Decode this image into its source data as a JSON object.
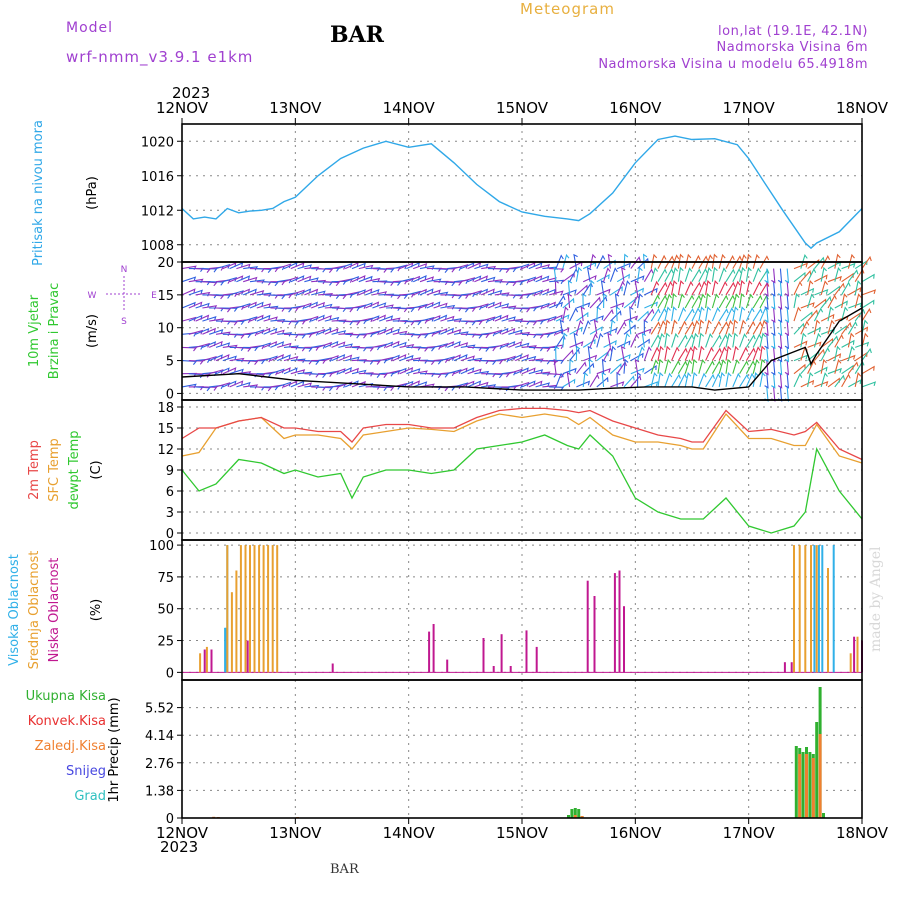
{
  "header": {
    "model_label": "Model",
    "model_name": "wrf-nmm_v3.9.1  e1km",
    "station": "BAR",
    "title": "Meteogram",
    "lonlat": "lon,lat (19.1E, 42.1N)",
    "altitude": "Nadmorska Visina 6m",
    "model_altitude": "Nadmorska Visina u modelu 65.4918m"
  },
  "footer": {
    "station": "BAR",
    "credit": "made by Angel"
  },
  "colors": {
    "pressure": "#30a8e8",
    "t2m": "#e84848",
    "sfc": "#e8a030",
    "dewpt": "#30c830",
    "cloud_high": "#30b0e8",
    "cloud_mid": "#e8a030",
    "cloud_low": "#c01890",
    "precip_total": "#30b030",
    "precip_conv": "#e83030",
    "precip_frozen": "#f08030",
    "snow": "#4848e0",
    "graupel": "#30c0c0",
    "purple": "#a040d0",
    "grid": "#888888"
  },
  "chart_data": [
    {
      "type": "line",
      "panel": "pressure",
      "year": "2023",
      "x_tick_labels": [
        "12NOV",
        "13NOV",
        "14NOV",
        "15NOV",
        "16NOV",
        "17NOV",
        "18NOV"
      ],
      "ylabel_lines": [
        "Pritisak na nivou mora"
      ],
      "unit": "(hPa)",
      "ylim": [
        1006,
        1022
      ],
      "y_ticks": [
        "1008",
        "1012",
        "1016",
        "1020"
      ],
      "grid": true,
      "x": [
        0,
        0.1,
        0.2,
        0.3,
        0.4,
        0.5,
        0.6,
        0.7,
        0.8,
        0.9,
        1.0,
        1.2,
        1.4,
        1.6,
        1.8,
        2.0,
        2.2,
        2.4,
        2.6,
        2.8,
        3.0,
        3.2,
        3.4,
        3.5,
        3.6,
        3.8,
        4.0,
        4.2,
        4.35,
        4.5,
        4.7,
        4.9,
        5.0,
        5.1,
        5.3,
        5.5,
        5.55,
        5.6,
        5.8,
        6.0
      ],
      "series": [
        {
          "values": [
            1012.2,
            1011,
            1011.2,
            1011,
            1012.2,
            1011.7,
            1011.9,
            1012,
            1012.2,
            1013,
            1013.5,
            1016,
            1018,
            1019.2,
            1020,
            1019.3,
            1019.7,
            1017.5,
            1015,
            1013,
            1011.8,
            1011.3,
            1011,
            1010.8,
            1011.6,
            1014,
            1017.5,
            1020.2,
            1020.6,
            1020.2,
            1020.3,
            1019.6,
            1018,
            1016,
            1012,
            1008.2,
            1007.6,
            1008.2,
            1009.5,
            1012.2
          ]
        }
      ]
    },
    {
      "type": "line",
      "panel": "wind",
      "ylabel_lines": [
        "10m Vjetar",
        "Brzina i Pravac"
      ],
      "unit": "(m/s)",
      "compass": {
        "n": "N",
        "w": "W",
        "e": "E",
        "s": "S"
      },
      "ylim": [
        -1,
        20
      ],
      "y_ticks": [
        "0",
        "5",
        "10",
        "15",
        "20"
      ],
      "grid": true,
      "x": [
        0,
        0.5,
        1.0,
        1.5,
        2.0,
        2.5,
        3.0,
        3.5,
        3.8,
        4.1,
        4.5,
        4.7,
        5.0,
        5.2,
        5.5,
        5.55,
        5.6,
        5.8,
        6.0
      ],
      "series": [
        {
          "values": [
            2.5,
            3,
            2,
            1.5,
            1,
            1,
            0.5,
            0.5,
            0.8,
            1,
            1,
            0.5,
            1,
            5,
            7,
            4.5,
            6,
            11,
            13
          ]
        }
      ],
      "barb_rows": [
        1,
        3,
        5,
        7,
        9,
        11,
        13,
        15,
        17,
        19
      ],
      "barb_time_step": 0.06,
      "barb_colors": [
        "#9030c0",
        "#3060e0",
        "#30b0e8",
        "#30c0a0",
        "#40c040",
        "#e06030",
        "#e03050"
      ]
    },
    {
      "type": "line",
      "panel": "temperature",
      "ylabel_lines": [
        "2m Temp",
        "SFC Temp",
        "dewpt Temp"
      ],
      "unit": "(C)",
      "ylim": [
        -1,
        19
      ],
      "y_ticks": [
        "0",
        "3",
        "6",
        "9",
        "12",
        "15",
        "18"
      ],
      "grid": true,
      "x": [
        0,
        0.15,
        0.3,
        0.5,
        0.7,
        0.9,
        1.0,
        1.2,
        1.4,
        1.5,
        1.6,
        1.8,
        2.0,
        2.2,
        2.4,
        2.6,
        2.8,
        3.0,
        3.2,
        3.4,
        3.5,
        3.6,
        3.8,
        4.0,
        4.2,
        4.4,
        4.5,
        4.6,
        4.8,
        5.0,
        5.2,
        5.4,
        5.5,
        5.6,
        5.8,
        6.0
      ],
      "series": [
        {
          "name": "2m Temp",
          "values": [
            13.5,
            15,
            15,
            16,
            16.5,
            15,
            15,
            14.5,
            14.5,
            13,
            15,
            15.5,
            15.5,
            15,
            15,
            16.5,
            17.5,
            17.8,
            17.8,
            17.5,
            17.2,
            17.5,
            16,
            15,
            14,
            13.5,
            13,
            13,
            17.5,
            14.5,
            14.8,
            14,
            14.5,
            15.8,
            12,
            10.5
          ]
        },
        {
          "name": "SFC Temp",
          "values": [
            11,
            11.5,
            15,
            16,
            16.5,
            13.5,
            14,
            14,
            13.5,
            12,
            14,
            14.5,
            15,
            14.8,
            14.5,
            16,
            17,
            16.5,
            17,
            16.5,
            15.5,
            16.5,
            14,
            13,
            13,
            12.5,
            12,
            12,
            17,
            13.5,
            13.5,
            12.5,
            12.5,
            15.5,
            11,
            10
          ]
        },
        {
          "name": "dewpt Temp",
          "values": [
            9,
            6,
            7,
            10.5,
            10,
            8.5,
            9,
            8,
            8.5,
            5,
            8,
            9,
            9,
            8.5,
            9,
            12,
            12.5,
            13,
            14,
            12.5,
            12,
            14,
            11,
            5,
            3,
            2,
            2,
            2,
            5,
            1,
            0,
            1,
            3,
            12,
            6,
            2
          ]
        }
      ]
    },
    {
      "type": "bar",
      "panel": "cloud",
      "ylabel_lines": [
        "Visoka Oblacnost",
        "Srednja Oblacnost",
        "Niska Oblacnost"
      ],
      "unit": "(%)",
      "ylim": [
        -6,
        104
      ],
      "y_ticks": [
        "0",
        "25",
        "50",
        "75",
        "100"
      ],
      "grid": true,
      "series": [
        {
          "name": "Visoka Oblacnost",
          "x": [
            0.38,
            0.39,
            0.4,
            5.58,
            5.62,
            5.65,
            5.75
          ],
          "values": [
            35,
            35,
            100,
            100,
            100,
            100,
            100
          ]
        },
        {
          "name": "Srednja Oblacnost",
          "x": [
            0.16,
            0.22,
            0.4,
            0.44,
            0.48,
            0.52,
            0.56,
            0.6,
            0.64,
            0.68,
            0.72,
            0.76,
            0.8,
            0.84,
            5.4,
            5.45,
            5.5,
            5.55,
            5.6,
            5.7,
            5.9,
            5.96
          ],
          "values": [
            15,
            20,
            100,
            63,
            80,
            100,
            100,
            100,
            100,
            100,
            100,
            100,
            100,
            100,
            100,
            100,
            100,
            100,
            100,
            82,
            15,
            28
          ]
        },
        {
          "name": "Niska Oblacnost",
          "x": [
            0.2,
            0.26,
            0.58,
            1.33,
            2.18,
            2.22,
            2.34,
            2.66,
            2.75,
            2.82,
            2.9,
            3.04,
            3.13,
            3.58,
            3.64,
            3.82,
            3.86,
            3.9,
            5.32,
            5.38,
            5.93,
            6.0
          ],
          "values": [
            18,
            18,
            25,
            7,
            32,
            38,
            10,
            27,
            5,
            30,
            5,
            33,
            20,
            72,
            60,
            78,
            80,
            52,
            8,
            8,
            28,
            25
          ]
        }
      ]
    },
    {
      "type": "bar",
      "panel": "precip",
      "ylabel_lines": [
        "1hr Precip (mm)"
      ],
      "legend": [
        "Ukupna Kisa",
        "Konvek.Kisa",
        "Zaledj.Kisa",
        "Snijeg",
        "Grad"
      ],
      "ylim": [
        0,
        6.9
      ],
      "y_ticks": [
        "0",
        "1.38",
        "2.76",
        "4.14",
        "5.52"
      ],
      "grid": true,
      "series": [
        {
          "name": "Ukupna Kisa",
          "x": [
            3.41,
            3.44,
            3.47,
            3.5,
            3.53,
            5.42,
            5.45,
            5.48,
            5.51,
            5.54,
            5.57,
            5.6,
            5.63,
            5.66
          ],
          "values": [
            0.15,
            0.45,
            0.5,
            0.45,
            0.1,
            3.6,
            3.5,
            3.3,
            3.55,
            3.3,
            3.2,
            4.8,
            6.55,
            0.25
          ]
        },
        {
          "name": "Zaledj.Kisa",
          "x": [
            0.28,
            0.32,
            1.02,
            3.47,
            3.53,
            5.45,
            5.51,
            5.57,
            5.63
          ],
          "values": [
            0.06,
            0.05,
            0.05,
            0.15,
            0.1,
            3.2,
            3.2,
            3.0,
            4.2
          ]
        }
      ]
    }
  ]
}
